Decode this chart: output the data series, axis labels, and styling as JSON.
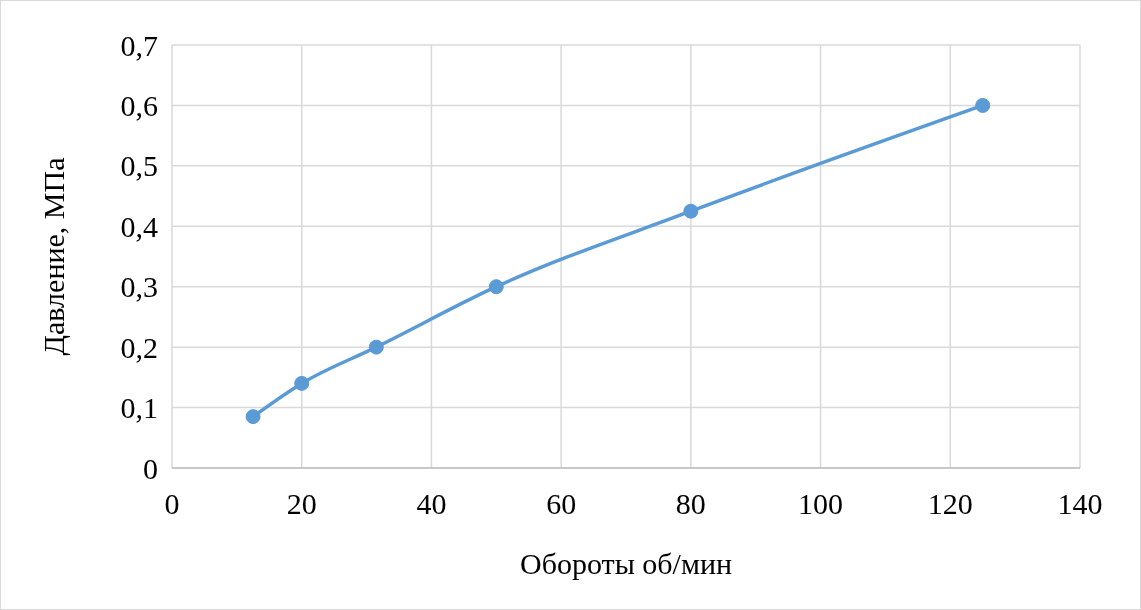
{
  "chart_data": {
    "type": "line",
    "xlabel": "Обороты об/мин",
    "ylabel": "Давление, МПа",
    "x": [
      12.5,
      20,
      31.5,
      50,
      80,
      125
    ],
    "series": [
      {
        "color": "#5b9bd5",
        "values": [
          0.085,
          0.14,
          0.2,
          0.3,
          0.425,
          0.6
        ]
      }
    ],
    "xlim": [
      0,
      140
    ],
    "xticks": [
      0,
      20,
      40,
      60,
      80,
      100,
      120,
      140
    ],
    "ylim": [
      0,
      0.7
    ],
    "yticks": [
      {
        "value": 0,
        "label": "0"
      },
      {
        "value": 0.1,
        "label": "0,1"
      },
      {
        "value": 0.2,
        "label": "0,2"
      },
      {
        "value": 0.3,
        "label": "0,3"
      },
      {
        "value": 0.4,
        "label": "0,4"
      },
      {
        "value": 0.5,
        "label": "0,5"
      },
      {
        "value": 0.6,
        "label": "0,6"
      },
      {
        "value": 0.7,
        "label": "0,7"
      }
    ],
    "grid": true,
    "marker": "circle",
    "line_style": "solid"
  }
}
